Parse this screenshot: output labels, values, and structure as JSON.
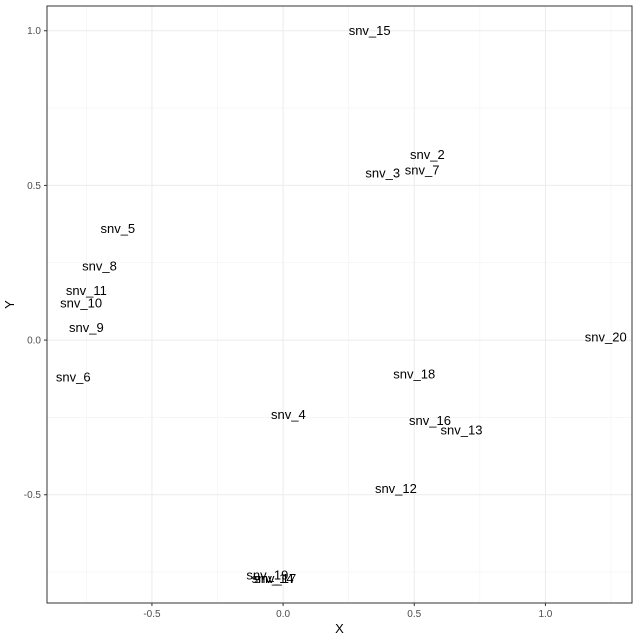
{
  "chart_data": {
    "type": "scatter",
    "marker": "text-label",
    "xlabel": "X",
    "ylabel": "Y",
    "xlim": [
      -0.9,
      1.33
    ],
    "ylim": [
      -0.85,
      1.08
    ],
    "x_ticks": [
      -0.5,
      0.0,
      0.5,
      1.0
    ],
    "x_tick_labels": [
      "-0.5",
      "0.0",
      "0.5",
      "1.0"
    ],
    "y_ticks": [
      -0.5,
      0.0,
      0.5,
      1.0
    ],
    "y_tick_labels": [
      "-0.5",
      "0.0",
      "0.5",
      "1.0"
    ],
    "grid": true,
    "legend": "none",
    "background": "#ffffff",
    "text_color": "#000000",
    "points": [
      {
        "label": "snv_2",
        "x": 0.55,
        "y": 0.6
      },
      {
        "label": "snv_3",
        "x": 0.38,
        "y": 0.54
      },
      {
        "label": "snv_4",
        "x": 0.02,
        "y": -0.24
      },
      {
        "label": "snv_5",
        "x": -0.63,
        "y": 0.36
      },
      {
        "label": "snv_6",
        "x": -0.8,
        "y": -0.12
      },
      {
        "label": "snv_7",
        "x": 0.53,
        "y": 0.55
      },
      {
        "label": "snv_8",
        "x": -0.7,
        "y": 0.24
      },
      {
        "label": "snv_9",
        "x": -0.75,
        "y": 0.04
      },
      {
        "label": "snv_10",
        "x": -0.77,
        "y": 0.12
      },
      {
        "label": "snv_11",
        "x": -0.75,
        "y": 0.16
      },
      {
        "label": "snv_12",
        "x": 0.43,
        "y": -0.48
      },
      {
        "label": "snv_13",
        "x": 0.68,
        "y": -0.29
      },
      {
        "label": "snv_14",
        "x": -0.04,
        "y": -0.77
      },
      {
        "label": "snv_15",
        "x": 0.33,
        "y": 1.0
      },
      {
        "label": "snv_16",
        "x": 0.56,
        "y": -0.26
      },
      {
        "label": "snv_17",
        "x": -0.03,
        "y": -0.77
      },
      {
        "label": "snv_18",
        "x": 0.5,
        "y": -0.11
      },
      {
        "label": "snv_19",
        "x": -0.06,
        "y": -0.76
      },
      {
        "label": "snv_20",
        "x": 1.23,
        "y": 0.01
      }
    ]
  }
}
